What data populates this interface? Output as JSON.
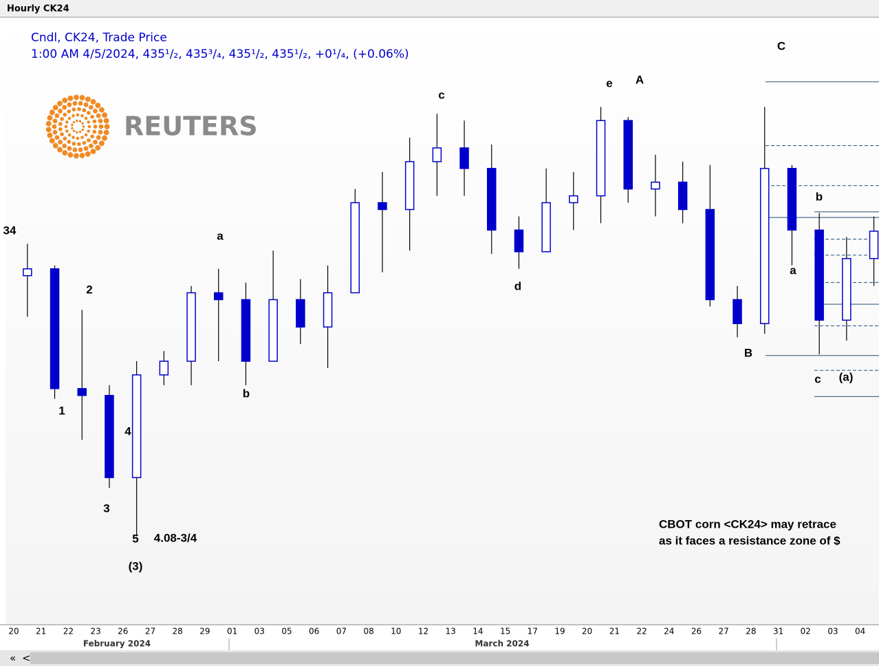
{
  "header": {
    "title": "Hourly CK24"
  },
  "chart_data": {
    "type": "candlestick",
    "legend_lines": [
      "Cndl, CK24, Trade Price",
      "1:00 AM 4/5/2024, 435¹/₂, 435³/₄, 435¹/₂, 435¹/₂, +0¹/₄, (+0.06%)"
    ],
    "logo_text": "REUTERS",
    "categories": [
      "20",
      "21",
      "22",
      "23",
      "26",
      "27",
      "28",
      "29",
      "01",
      "03",
      "05",
      "06",
      "07",
      "08",
      "10",
      "12",
      "13",
      "14",
      "15",
      "17",
      "19",
      "20",
      "21",
      "22",
      "24",
      "26",
      "27",
      "28",
      "31",
      "02",
      "03",
      "04"
    ],
    "months": [
      "February 2024",
      "March 2024"
    ],
    "color": "#0000cc",
    "open": [
      431.6,
      432.2,
      421.7,
      421.1,
      413.9,
      422.9,
      424.1,
      430.1,
      429.5,
      424.1,
      429.5,
      427.1,
      430.1,
      438.0,
      437.4,
      441.6,
      442.8,
      441.0,
      435.6,
      433.7,
      438.0,
      438.6,
      445.2,
      439.2,
      439.8,
      437.4,
      429.5,
      427.4,
      441.0,
      435.6,
      427.7,
      433.1
    ],
    "high": [
      434.4,
      432.5,
      428.6,
      422.0,
      424.1,
      425.0,
      430.7,
      432.2,
      431.0,
      433.8,
      431.3,
      432.5,
      439.2,
      440.7,
      443.7,
      445.8,
      445.2,
      443.1,
      436.8,
      441.0,
      440.7,
      446.4,
      445.5,
      442.2,
      441.6,
      441.3,
      430.7,
      446.4,
      441.3,
      437.1,
      435.0,
      436.8
    ],
    "low": [
      428.0,
      420.8,
      417.2,
      413.0,
      408.75,
      422.0,
      422.0,
      424.1,
      422.0,
      424.1,
      425.6,
      423.5,
      430.1,
      431.9,
      433.8,
      438.6,
      438.6,
      433.5,
      432.2,
      433.7,
      435.6,
      436.2,
      438.0,
      436.8,
      436.2,
      428.9,
      426.2,
      426.5,
      432.5,
      424.7,
      425.9,
      430.7
    ],
    "close": [
      432.2,
      421.7,
      421.1,
      413.9,
      422.9,
      424.1,
      430.1,
      429.5,
      424.1,
      429.5,
      427.1,
      430.1,
      438.0,
      437.4,
      441.6,
      442.8,
      441.0,
      435.6,
      433.7,
      438.0,
      438.6,
      445.2,
      439.2,
      439.8,
      437.4,
      429.5,
      427.4,
      441.0,
      435.6,
      427.7,
      433.1,
      435.5
    ],
    "ylim": [
      401,
      454.2
    ],
    "levels": [
      [
        448.6,
        443.0,
        439.5,
        436.7,
        424.6
      ],
      [
        437.2,
        434.8,
        433.4,
        431.0,
        429.1,
        427.2,
        423.3,
        421.0
      ]
    ],
    "level_styles": [
      [
        "solid",
        "dashed",
        "dashed",
        "solid",
        "solid"
      ],
      [
        "solid",
        "dashed",
        "dashed",
        "dashed",
        "solid",
        "dashed",
        "dashed",
        "solid"
      ]
    ],
    "annotations": [
      "34",
      "a",
      "2",
      "1",
      "3",
      "4",
      "5",
      "4.08-3/4",
      "(3)",
      "b",
      "c",
      "d",
      "e",
      "A",
      "C",
      "B",
      "b",
      "a",
      "c",
      "(a)"
    ],
    "caption": [
      "CBOT corn <CK24> may retrace",
      "as it faces a resistance zone of $"
    ]
  },
  "scroll_buttons": [
    "«",
    "<"
  ]
}
